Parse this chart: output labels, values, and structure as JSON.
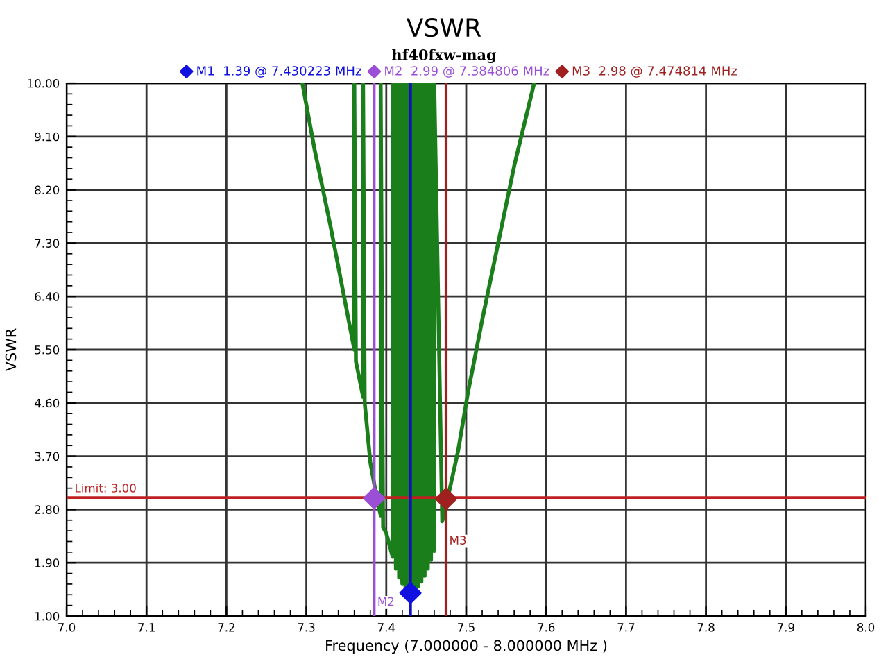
{
  "chart_data": {
    "type": "line",
    "title": "VSWR",
    "subtitle": "hf40fxw-mag",
    "xlabel": "Frequency (7.000000 - 8.000000 MHz )",
    "ylabel": "VSWR",
    "xlim": [
      7.0,
      8.0
    ],
    "ylim": [
      1.0,
      10.0
    ],
    "xticks": [
      {
        "value": 7.0,
        "label": "7.0"
      },
      7.1,
      7.2,
      7.3,
      7.4,
      7.5,
      7.6,
      7.7,
      7.8,
      7.9,
      {
        "value": 8.0,
        "label": "8.0"
      }
    ],
    "yticks": [
      {
        "value": 1.0,
        "label": "1.00"
      },
      {
        "value": 1.9,
        "label": "1.90"
      },
      {
        "value": 2.8,
        "label": "2.80"
      },
      {
        "value": 3.7,
        "label": "3.70"
      },
      {
        "value": 4.6,
        "label": "4.60"
      },
      {
        "value": 5.5,
        "label": "5.50"
      },
      {
        "value": 6.4,
        "label": "6.40"
      },
      {
        "value": 7.3,
        "label": "7.30"
      },
      {
        "value": 8.2,
        "label": "8.20"
      },
      {
        "value": 9.1,
        "label": "9.10"
      },
      {
        "value": 10.0,
        "label": "10.00"
      }
    ],
    "grid": true,
    "legend": "top",
    "marker": "none",
    "line_style": "solid",
    "series": [
      {
        "color": "#1a7f1a",
        "x": [
          7.295,
          7.31,
          7.33,
          7.35,
          7.36,
          7.36,
          7.362,
          7.371,
          7.371,
          7.373,
          7.38,
          7.388,
          7.393,
          7.393,
          7.396,
          7.4,
          7.408,
          7.408,
          7.412,
          7.412,
          7.416,
          7.416,
          7.42,
          7.42,
          7.424,
          7.424,
          7.428,
          7.428,
          7.43,
          7.432,
          7.432,
          7.436,
          7.436,
          7.44,
          7.44,
          7.444,
          7.444,
          7.448,
          7.448,
          7.452,
          7.452,
          7.456,
          7.456,
          7.46,
          7.46,
          7.47,
          7.477,
          7.49,
          7.502,
          7.52,
          7.54,
          7.56,
          7.585
        ],
        "values": [
          10.0,
          8.9,
          7.6,
          6.2,
          5.5,
          10.0,
          5.3,
          4.7,
          10.0,
          4.6,
          3.6,
          3.0,
          2.7,
          10.0,
          2.5,
          2.4,
          2.0,
          10.0,
          1.8,
          10.0,
          1.65,
          10.0,
          1.55,
          10.0,
          1.47,
          10.0,
          1.42,
          10.0,
          1.39,
          1.41,
          10.0,
          1.45,
          10.0,
          1.5,
          10.0,
          1.58,
          10.0,
          1.68,
          10.0,
          1.8,
          10.0,
          1.95,
          10.0,
          2.1,
          10.0,
          2.6,
          3.0,
          3.8,
          4.76,
          6.0,
          7.3,
          8.6,
          10.0
        ]
      },
      {
        "type": "scatter",
        "name": "M1  1.39 @ 7.430223 MHz",
        "color": "#1010e0",
        "marker": "diamond",
        "x": [
          7.430223
        ],
        "values": [
          1.39
        ]
      },
      {
        "type": "scatter",
        "name": "M2  2.99 @ 7.384806 MHz",
        "color": "#9b4fd6",
        "marker": "diamond",
        "x": [
          7.384806
        ],
        "values": [
          2.99
        ]
      },
      {
        "type": "scatter",
        "name": "M3  2.98 @ 7.474814 MHz",
        "color": "#a02020",
        "marker": "diamond",
        "x": [
          7.474814
        ],
        "values": [
          2.98
        ]
      }
    ],
    "ref_lines": [
      {
        "axis": "y",
        "value": 3.0,
        "label": "Limit: 3.00",
        "color": "#c02020"
      },
      {
        "axis": "x",
        "value": 7.430223,
        "label": null,
        "color": "#1010c0"
      },
      {
        "axis": "x",
        "value": 7.384806,
        "label": "M2",
        "color": "#9b4fd6"
      },
      {
        "axis": "x",
        "value": 7.474814,
        "label": "M3",
        "color": "#a02020"
      }
    ]
  }
}
